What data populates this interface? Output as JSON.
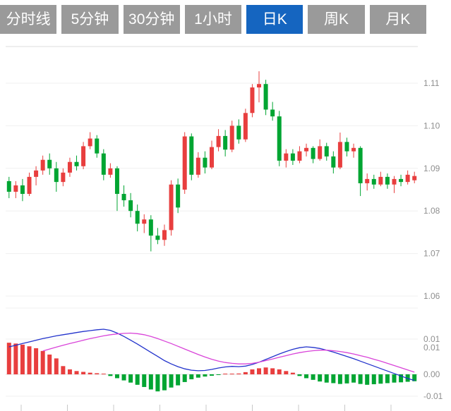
{
  "tabs": [
    {
      "label": "分时线",
      "active": false
    },
    {
      "label": "5分钟",
      "active": false
    },
    {
      "label": "30分钟",
      "active": false
    },
    {
      "label": "1小时",
      "active": false
    },
    {
      "label": "日K",
      "active": true
    },
    {
      "label": "周K",
      "active": false
    },
    {
      "label": "月K",
      "active": false
    }
  ],
  "colors": {
    "tab_bg": "#9a9a9a",
    "tab_active_bg": "#1565c0",
    "tab_text": "#ffffff",
    "up": "#e83e3e",
    "down": "#00a532",
    "dif_line": "#2233cc",
    "dea_line": "#d944d9",
    "grid": "#f0f0f0",
    "frame": "#dcdcdc",
    "axis_text": "#8f8f8f"
  },
  "chart_data": {
    "type": "candlestick",
    "title": "",
    "legend": [],
    "grid": "horizontal-only",
    "color_convention": "red-up-green-down",
    "price_axis": {
      "tick_labels": [
        "1.11",
        "1.10",
        "1.09",
        "1.08",
        "1.07",
        "1.06"
      ],
      "visible_range": [
        1.057,
        1.119
      ]
    },
    "candles_ohlc": [
      [
        1.087,
        1.088,
        1.083,
        1.0845
      ],
      [
        1.0845,
        1.087,
        1.083,
        1.086
      ],
      [
        1.086,
        1.0875,
        1.0823,
        1.084
      ],
      [
        1.084,
        1.089,
        1.0835,
        1.088
      ],
      [
        1.088,
        1.0905,
        1.086,
        1.0895
      ],
      [
        1.0895,
        1.093,
        1.0885,
        1.092
      ],
      [
        1.092,
        1.0935,
        1.0885,
        1.09
      ],
      [
        1.09,
        1.0915,
        1.0845,
        1.0868
      ],
      [
        1.0868,
        1.09,
        1.0858,
        1.089
      ],
      [
        1.089,
        1.0925,
        1.088,
        1.0915
      ],
      [
        1.0915,
        1.093,
        1.0895,
        1.0905
      ],
      [
        1.0905,
        1.0962,
        1.0898,
        1.0952
      ],
      [
        1.0952,
        1.0985,
        1.0945,
        1.097
      ],
      [
        1.097,
        1.0978,
        1.0925,
        1.0935
      ],
      [
        1.0935,
        1.0945,
        1.0872,
        1.0885
      ],
      [
        1.0885,
        1.0912,
        1.0878,
        1.09
      ],
      [
        1.09,
        1.0905,
        1.08,
        1.084
      ],
      [
        1.084,
        1.086,
        1.081,
        1.0825
      ],
      [
        1.0825,
        1.0842,
        1.0785,
        1.08
      ],
      [
        1.08,
        1.0815,
        1.0752,
        1.077
      ],
      [
        1.077,
        1.0792,
        1.0748,
        1.078
      ],
      [
        1.078,
        1.079,
        1.0705,
        1.0742
      ],
      [
        1.0742,
        1.076,
        1.0722,
        1.0732
      ],
      [
        1.0732,
        1.0768,
        1.0718,
        1.0755
      ],
      [
        1.0755,
        1.0872,
        1.0742,
        1.0862
      ],
      [
        1.0862,
        1.0876,
        1.0795,
        1.0808
      ],
      [
        1.085,
        1.0985,
        1.084,
        1.0975
      ],
      [
        1.0975,
        1.0982,
        1.0872,
        1.0885
      ],
      [
        1.0885,
        1.0938,
        1.0878,
        1.0925
      ],
      [
        1.0925,
        1.094,
        1.0888,
        1.0902
      ],
      [
        1.0902,
        1.0965,
        1.0898,
        1.095
      ],
      [
        1.095,
        1.0992,
        1.094,
        1.0976
      ],
      [
        1.0976,
        1.099,
        1.0928,
        1.0944
      ],
      [
        1.0944,
        1.1012,
        1.0938,
        1.1
      ],
      [
        1.1,
        1.1015,
        1.0958,
        1.0968
      ],
      [
        1.0968,
        1.104,
        1.0962,
        1.103
      ],
      [
        1.103,
        1.1098,
        1.102,
        1.109
      ],
      [
        1.109,
        1.1128,
        1.1055,
        1.1098
      ],
      [
        1.1098,
        1.1108,
        1.1025,
        1.1038
      ],
      [
        1.1038,
        1.1056,
        1.1012,
        1.1022
      ],
      [
        1.1022,
        1.1035,
        1.0905,
        1.0918
      ],
      [
        1.0918,
        1.0945,
        1.0902,
        1.0935
      ],
      [
        1.0935,
        1.0945,
        1.0908,
        1.0918
      ],
      [
        1.0918,
        1.0952,
        1.0912,
        1.094
      ],
      [
        1.094,
        1.0958,
        1.0928,
        1.0948
      ],
      [
        1.0948,
        1.0952,
        1.0912,
        1.0922
      ],
      [
        1.0922,
        1.0968,
        1.0918,
        1.0952
      ],
      [
        1.0952,
        1.096,
        1.0918,
        1.0928
      ],
      [
        1.0928,
        1.094,
        1.0888,
        1.0902
      ],
      [
        1.0902,
        1.0984,
        1.0898,
        1.0962
      ],
      [
        1.0962,
        1.0972,
        1.0928,
        1.094
      ],
      [
        1.094,
        1.0958,
        1.0925,
        1.0948
      ],
      [
        1.0948,
        1.0952,
        1.0835,
        1.0865
      ],
      [
        1.0865,
        1.0888,
        1.0848,
        1.0875
      ],
      [
        1.0875,
        1.0885,
        1.0852,
        1.0862
      ],
      [
        1.0862,
        1.0892,
        1.0858,
        1.088
      ],
      [
        1.088,
        1.0888,
        1.0852,
        1.0862
      ],
      [
        1.0862,
        1.0882,
        1.0842,
        1.0875
      ],
      [
        1.0875,
        1.0885,
        1.0858,
        1.0868
      ],
      [
        1.0868,
        1.0895,
        1.0862,
        1.0885
      ],
      [
        1.0872,
        1.0892,
        1.0865,
        1.0882
      ]
    ],
    "indicator": {
      "type": "MACD",
      "axis_tick_labels": [
        "0.01",
        "0.01",
        "0.00",
        "-0.01"
      ],
      "histogram": [
        0.0115,
        0.0112,
        0.0108,
        0.0102,
        0.0095,
        0.0085,
        0.0072,
        0.0058,
        0.003,
        0.0018,
        0.0012,
        0.0009,
        0.0006,
        0.0004,
        0.0002,
        -0.0006,
        -0.0014,
        -0.0022,
        -0.003,
        -0.0038,
        -0.0046,
        -0.0055,
        -0.0062,
        -0.0058,
        -0.0048,
        -0.004,
        -0.0028,
        -0.0018,
        -0.0012,
        -0.0008,
        -0.0005,
        -0.0002,
        0.0001,
        0.0002,
        0.0003,
        0.0008,
        0.0018,
        0.0022,
        0.0025,
        0.0022,
        0.0018,
        0.0012,
        0.0006,
        -0.0006,
        -0.0014,
        -0.002,
        -0.0026,
        -0.003,
        -0.0032,
        -0.0035,
        -0.0033,
        -0.003,
        -0.0035,
        -0.0038,
        -0.0036,
        -0.0034,
        -0.0032,
        -0.003,
        -0.0029,
        -0.0027,
        -0.0025
      ],
      "dif": [
        0.01,
        0.0106,
        0.0112,
        0.0118,
        0.0124,
        0.013,
        0.0135,
        0.014,
        0.0144,
        0.0148,
        0.0152,
        0.0156,
        0.0159,
        0.0162,
        0.0164,
        0.016,
        0.015,
        0.0138,
        0.0124,
        0.011,
        0.0095,
        0.008,
        0.0065,
        0.005,
        0.0038,
        0.0028,
        0.002,
        0.0015,
        0.0013,
        0.0014,
        0.0018,
        0.0023,
        0.0027,
        0.0029,
        0.0028,
        0.003,
        0.0036,
        0.0044,
        0.0054,
        0.0064,
        0.0074,
        0.0083,
        0.0091,
        0.0097,
        0.01,
        0.0098,
        0.0094,
        0.0088,
        0.0081,
        0.0073,
        0.0065,
        0.0057,
        0.0048,
        0.0039,
        0.003,
        0.0021,
        0.0012,
        0.0003,
        -0.0006,
        -0.0015,
        -0.0022
      ],
      "dea": [
        null,
        null,
        null,
        null,
        null,
        0.0085,
        0.0092,
        0.0099,
        0.0106,
        0.0112,
        0.0118,
        0.0124,
        0.013,
        0.0135,
        0.014,
        0.0144,
        0.0147,
        0.0149,
        0.015,
        0.0148,
        0.0144,
        0.0138,
        0.013,
        0.0121,
        0.0112,
        0.0102,
        0.0092,
        0.0082,
        0.0072,
        0.0063,
        0.0055,
        0.0048,
        0.0043,
        0.004,
        0.0038,
        0.0038,
        0.004,
        0.0044,
        0.005,
        0.0056,
        0.0062,
        0.0068,
        0.0074,
        0.0079,
        0.0083,
        0.0086,
        0.0088,
        0.0088,
        0.0086,
        0.0083,
        0.0079,
        0.0074,
        0.0068,
        0.0062,
        0.0055,
        0.0048,
        0.004,
        0.0032,
        0.0024,
        0.0016,
        0.0008
      ]
    }
  }
}
